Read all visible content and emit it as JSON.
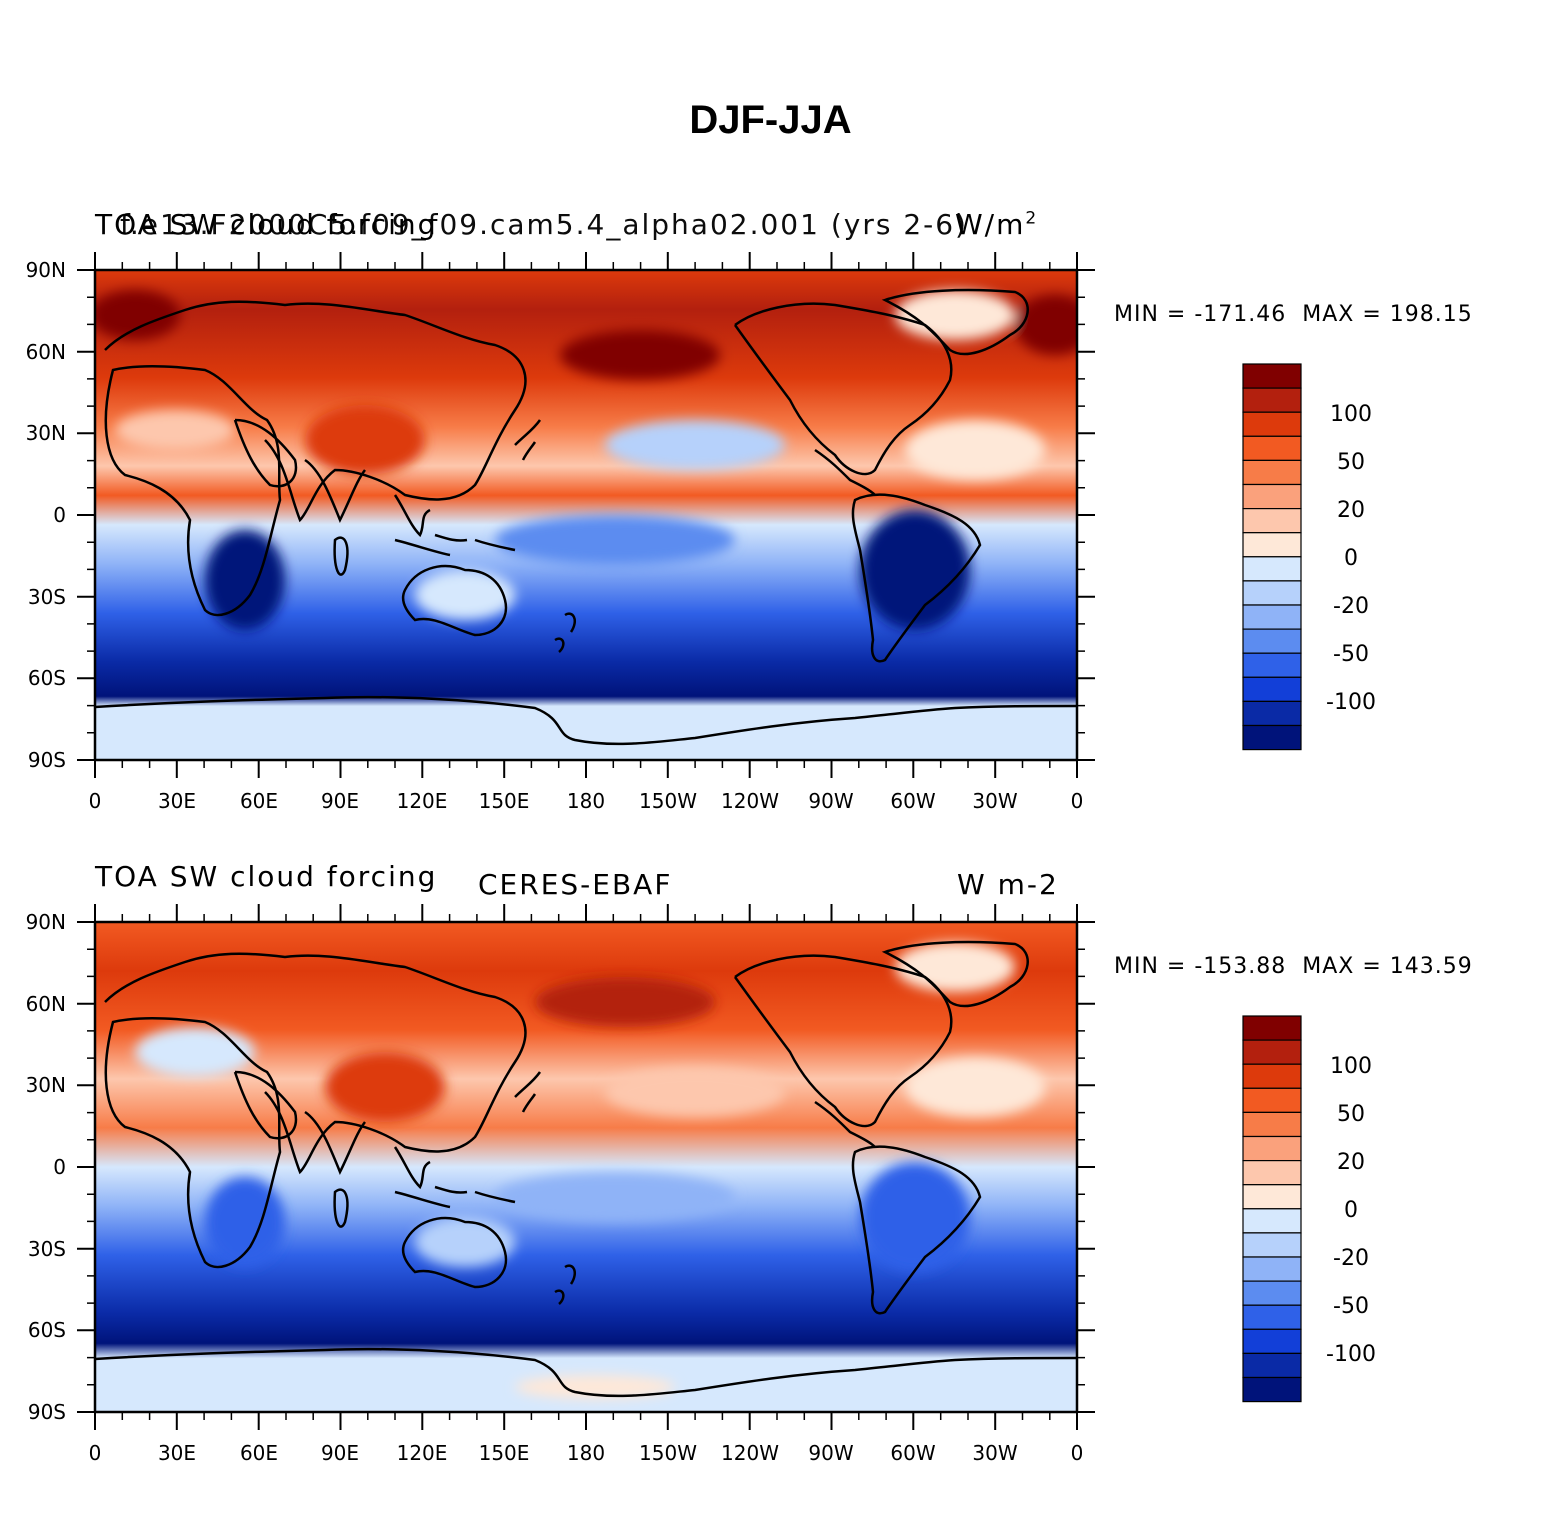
{
  "title": "DJF-JJA",
  "panels": [
    {
      "id": "model",
      "left_label": "TOA SW cloud forcing",
      "center_label": "f.e13.F2000C5.f09_f09.cam5.4_alpha02.001 (yrs 2-6)",
      "right_label": "W/m",
      "right_label_sup": "2",
      "min_label": "MIN = -171.46",
      "max_label": "MAX = 198.15"
    },
    {
      "id": "obs",
      "left_label": "TOA SW cloud forcing",
      "center_label": "CERES-EBAF",
      "right_label": "W m-2",
      "min_label": "MIN = -153.88",
      "max_label": "MAX = 143.59"
    }
  ],
  "axes": {
    "lat_ticks": [
      "90N",
      "60N",
      "30N",
      "0",
      "30S",
      "60S",
      "90S"
    ],
    "lon_ticks": [
      "0",
      "30E",
      "60E",
      "90E",
      "120E",
      "150E",
      "180",
      "150W",
      "120W",
      "90W",
      "60W",
      "30W",
      "0"
    ]
  },
  "colorbar": {
    "labels": [
      "100",
      "50",
      "20",
      "0",
      "-20",
      "-50",
      "-100"
    ],
    "colors": [
      "#800000",
      "#b3200e",
      "#dd3a0c",
      "#f25a22",
      "#f77c48",
      "#faa17c",
      "#fdc7ad",
      "#fee8d8",
      "#d6e8fd",
      "#b6d1fb",
      "#8fb3f7",
      "#5c8cf0",
      "#2f61e8",
      "#123fd8",
      "#0a2aa6",
      "#00137a"
    ]
  }
}
